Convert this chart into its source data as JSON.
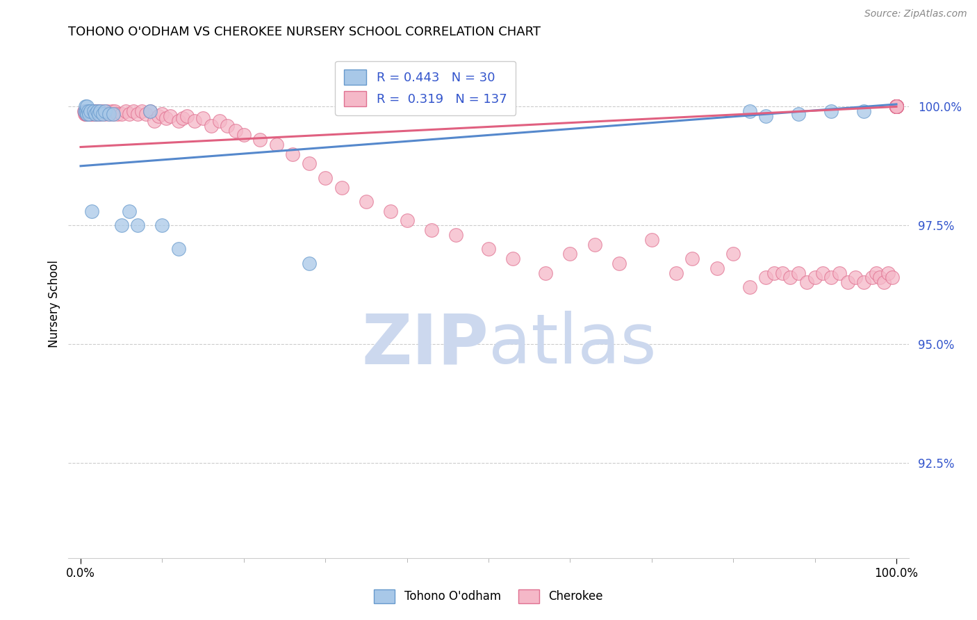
{
  "title": "TOHONO O'ODHAM VS CHEROKEE NURSERY SCHOOL CORRELATION CHART",
  "source": "Source: ZipAtlas.com",
  "ylabel": "Nursery School",
  "y_ticks": [
    92.5,
    95.0,
    97.5,
    100.0
  ],
  "y_tick_labels": [
    "92.5%",
    "95.0%",
    "97.5%",
    "100.0%"
  ],
  "xlim": [
    -1.5,
    101.5
  ],
  "ylim": [
    90.5,
    101.2
  ],
  "tohono_R": 0.443,
  "tohono_N": 30,
  "cherokee_R": 0.319,
  "cherokee_N": 137,
  "tohono_color": "#a8c8e8",
  "cherokee_color": "#f5b8c8",
  "tohono_edge_color": "#6699cc",
  "cherokee_edge_color": "#e07090",
  "tohono_line_color": "#5588cc",
  "cherokee_line_color": "#e06080",
  "legend_text_color": "#3355cc",
  "watermark_color": "#ccd8ee",
  "background_color": "#ffffff",
  "grid_color": "#cccccc",
  "tick_color": "#3355cc",
  "tohono_x": [
    0.5,
    0.6,
    0.7,
    0.8,
    0.8,
    0.9,
    1.0,
    1.2,
    1.4,
    1.6,
    1.8,
    2.0,
    2.2,
    2.4,
    2.7,
    3.0,
    3.5,
    4.0,
    5.0,
    6.0,
    7.0,
    8.5,
    10.0,
    12.0,
    28.0,
    82.0,
    84.0,
    88.0,
    92.0,
    96.0
  ],
  "tohono_y": [
    99.9,
    100.0,
    99.9,
    99.85,
    100.0,
    99.9,
    99.85,
    99.9,
    97.8,
    99.9,
    99.85,
    99.9,
    99.85,
    99.9,
    99.85,
    99.9,
    99.85,
    99.85,
    97.5,
    97.8,
    97.5,
    99.9,
    97.5,
    97.0,
    96.7,
    99.9,
    99.8,
    99.85,
    99.9,
    99.9
  ],
  "cherokee_x": [
    0.4,
    0.5,
    0.5,
    0.6,
    0.6,
    0.7,
    0.7,
    0.8,
    0.8,
    0.9,
    1.0,
    1.0,
    1.1,
    1.2,
    1.2,
    1.3,
    1.4,
    1.5,
    1.6,
    1.7,
    1.8,
    1.9,
    2.0,
    2.1,
    2.2,
    2.3,
    2.5,
    2.7,
    3.0,
    3.2,
    3.5,
    3.8,
    4.0,
    4.2,
    4.5,
    5.0,
    5.5,
    6.0,
    6.5,
    7.0,
    7.5,
    8.0,
    8.5,
    9.0,
    9.5,
    10.0,
    10.5,
    11.0,
    12.0,
    12.5,
    13.0,
    14.0,
    15.0,
    16.0,
    17.0,
    18.0,
    19.0,
    20.0,
    22.0,
    24.0,
    26.0,
    28.0,
    30.0,
    32.0,
    35.0,
    38.0,
    40.0,
    43.0,
    46.0,
    50.0,
    53.0,
    57.0,
    60.0,
    63.0,
    66.0,
    70.0,
    73.0,
    75.0,
    78.0,
    80.0,
    82.0,
    84.0,
    85.0,
    86.0,
    87.0,
    88.0,
    89.0,
    90.0,
    91.0,
    92.0,
    93.0,
    94.0,
    95.0,
    96.0,
    97.0,
    97.5,
    98.0,
    98.5,
    99.0,
    99.5,
    100.0,
    100.0,
    100.0,
    100.0,
    100.0,
    100.0,
    100.0,
    100.0,
    100.0,
    100.0,
    100.0,
    100.0,
    100.0,
    100.0,
    100.0,
    100.0,
    100.0,
    100.0,
    100.0,
    100.0,
    100.0,
    100.0,
    100.0,
    100.0,
    100.0,
    100.0,
    100.0,
    100.0,
    100.0,
    100.0,
    100.0,
    100.0,
    100.0,
    100.0,
    100.0,
    100.0,
    100.0
  ],
  "cherokee_y": [
    99.9,
    99.9,
    99.85,
    99.9,
    99.85,
    99.85,
    99.9,
    99.85,
    99.9,
    99.9,
    99.85,
    99.9,
    99.85,
    99.9,
    99.85,
    99.9,
    99.85,
    99.9,
    99.9,
    99.85,
    99.85,
    99.9,
    99.85,
    99.9,
    99.85,
    99.9,
    99.85,
    99.9,
    99.85,
    99.9,
    99.85,
    99.9,
    99.85,
    99.9,
    99.85,
    99.85,
    99.9,
    99.85,
    99.9,
    99.85,
    99.9,
    99.85,
    99.9,
    99.7,
    99.8,
    99.85,
    99.75,
    99.8,
    99.7,
    99.75,
    99.8,
    99.7,
    99.75,
    99.6,
    99.7,
    99.6,
    99.5,
    99.4,
    99.3,
    99.2,
    99.0,
    98.8,
    98.5,
    98.3,
    98.0,
    97.8,
    97.6,
    97.4,
    97.3,
    97.0,
    96.8,
    96.5,
    96.9,
    97.1,
    96.7,
    97.2,
    96.5,
    96.8,
    96.6,
    96.9,
    96.2,
    96.4,
    96.5,
    96.5,
    96.4,
    96.5,
    96.3,
    96.4,
    96.5,
    96.4,
    96.5,
    96.3,
    96.4,
    96.3,
    96.4,
    96.5,
    96.4,
    96.3,
    96.5,
    96.4,
    100.0,
    100.0,
    100.0,
    100.0,
    100.0,
    100.0,
    100.0,
    100.0,
    100.0,
    100.0,
    100.0,
    100.0,
    100.0,
    100.0,
    100.0,
    100.0,
    100.0,
    100.0,
    100.0,
    100.0,
    100.0,
    100.0,
    100.0,
    100.0,
    100.0,
    100.0,
    100.0,
    100.0,
    100.0,
    100.0,
    100.0,
    100.0,
    100.0,
    100.0,
    100.0,
    100.0,
    100.0
  ],
  "tohono_trend_x0": 0.0,
  "tohono_trend_y0": 98.75,
  "tohono_trend_x1": 100.0,
  "tohono_trend_y1": 100.05,
  "cherokee_trend_x0": 0.0,
  "cherokee_trend_y0": 99.15,
  "cherokee_trend_x1": 100.0,
  "cherokee_trend_y1": 100.0
}
